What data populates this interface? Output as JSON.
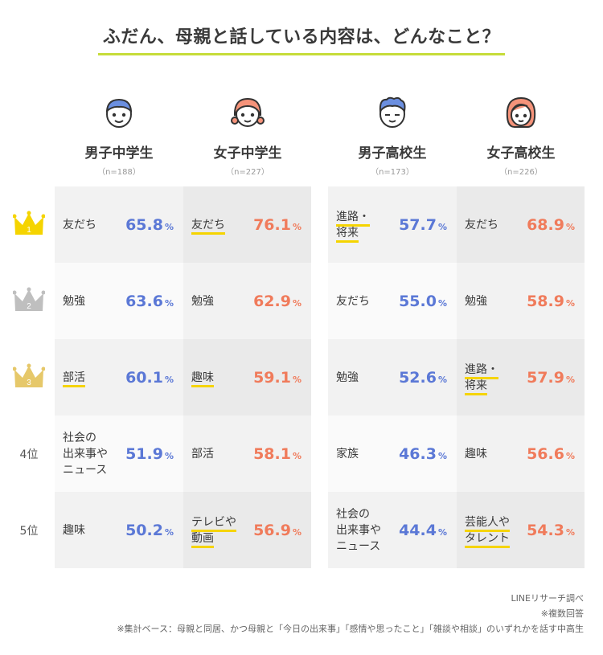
{
  "title": "ふだん、母親と話している内容は、どんなこと？",
  "colors": {
    "accent_line": "#c6dc3a",
    "male": "#5b78d6",
    "female": "#f07b5b",
    "highlight": "#f5d400",
    "gold": "#f5d400",
    "silver": "#bfbfbf",
    "bronze": "#e6c86a"
  },
  "columns": [
    {
      "name": "男子中学生",
      "n": "（n=188）",
      "icon": "boy-face-icon"
    },
    {
      "name": "女子中学生",
      "n": "（n=227）",
      "icon": "girl-face-icon"
    },
    {
      "name": "男子高校生",
      "n": "（n=173）",
      "icon": "boy-face-icon"
    },
    {
      "name": "女子高校生",
      "n": "（n=226）",
      "icon": "girl-face-icon"
    }
  ],
  "ranks": [
    {
      "label": "1",
      "type": "gold-crown-icon"
    },
    {
      "label": "2",
      "type": "silver-crown-icon"
    },
    {
      "label": "3",
      "type": "bronze-crown-icon"
    },
    {
      "label": "4位"
    },
    {
      "label": "5位"
    }
  ],
  "pct_sign": "%",
  "chart_data": {
    "type": "table",
    "title": "ふだん、母親と話している内容は、どんなこと？",
    "columns": [
      "男子中学生",
      "女子中学生",
      "男子高校生",
      "女子高校生"
    ],
    "rows": [
      [
        {
          "label": [
            "友だち"
          ],
          "value": "65.8"
        },
        {
          "label": [
            "友だち"
          ],
          "value": "76.1"
        },
        {
          "label": [
            "進路・",
            "将来"
          ],
          "value": "57.7"
        },
        {
          "label": [
            "友だち"
          ],
          "value": "68.9"
        }
      ],
      [
        {
          "label": [
            "勉強"
          ],
          "value": "63.6"
        },
        {
          "label": [
            "勉強"
          ],
          "value": "62.9"
        },
        {
          "label": [
            "友だち"
          ],
          "value": "55.0"
        },
        {
          "label": [
            "勉強"
          ],
          "value": "58.9"
        }
      ],
      [
        {
          "label": [
            "部活"
          ],
          "value": "60.1"
        },
        {
          "label": [
            "趣味"
          ],
          "value": "59.1"
        },
        {
          "label": [
            "勉強"
          ],
          "value": "52.6"
        },
        {
          "label": [
            "進路・",
            "将来"
          ],
          "value": "57.9"
        }
      ],
      [
        {
          "label": [
            "社会の",
            "出来事や",
            "ニュース"
          ],
          "value": "51.9"
        },
        {
          "label": [
            "部活"
          ],
          "value": "58.1"
        },
        {
          "label": [
            "家族"
          ],
          "value": "46.3"
        },
        {
          "label": [
            "趣味"
          ],
          "value": "56.6"
        }
      ],
      [
        {
          "label": [
            "趣味"
          ],
          "value": "50.2"
        },
        {
          "label": [
            "テレビや",
            "動画"
          ],
          "value": "56.9"
        },
        {
          "label": [
            "社会の",
            "出来事や",
            "ニュース"
          ],
          "value": "44.4"
        },
        {
          "label": [
            "芸能人や",
            "タレント"
          ],
          "value": "54.3"
        }
      ]
    ],
    "unit": "%"
  },
  "footer": {
    "source": "LINEリサーチ調べ",
    "note1": "※複数回答",
    "note2": "※集計ベース：母親と同居、かつ母親と「今日の出来事」「感情や思ったこと」「雑談や相談」のいずれかを話す中高生"
  }
}
